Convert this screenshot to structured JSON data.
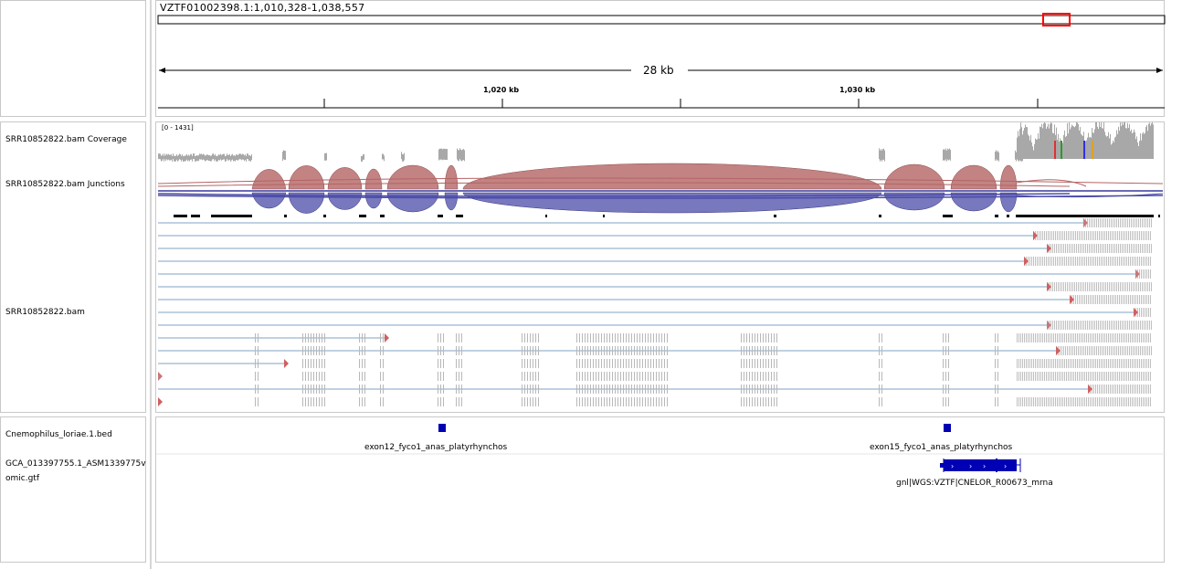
{
  "header": {
    "locus": "VZTF01002398.1:1,010,328-1,038,557",
    "span_label": "28 kb",
    "ticks": [
      "1,020 kb",
      "1,030 kb"
    ]
  },
  "tracks": {
    "coverage": {
      "name": "SRR10852822.bam Coverage",
      "range": "[0 - 1431]"
    },
    "junctions": {
      "name": "SRR10852822.bam Junctions"
    },
    "alignments": {
      "name": "SRR10852822.bam"
    },
    "bed": {
      "name": "Cnemophilus_loriae.1.bed",
      "features": [
        "exon12_fyco1_anas_platyrhynchos",
        "exon15_fyco1_anas_platyrhynchos"
      ]
    },
    "gtf": {
      "name_line1": "GCA_013397755.1_ASM1339775v",
      "name_line2": "omic.gtf",
      "feature": "gnl|WGS:VZTF|CNELOR_R00673_mrna"
    }
  },
  "colors": {
    "junction_plus": "#b46464",
    "junction_minus": "#4b4ba8",
    "coverage": "#a8a8a8",
    "feature": "#0000b4",
    "region_box": "#ff0000"
  }
}
